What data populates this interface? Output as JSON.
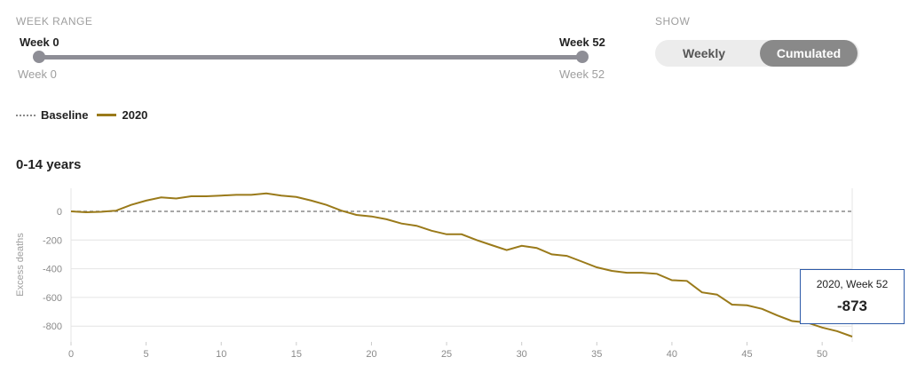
{
  "controls": {
    "week_range_label": "WEEK RANGE",
    "slider_start_top": "Week 0",
    "slider_end_top": "Week 52",
    "slider_start_bottom": "Week 0",
    "slider_end_bottom": "Week 52",
    "show_label": "SHOW",
    "toggle_weekly": "Weekly",
    "toggle_cumulated": "Cumulated",
    "toggle_selected": "Cumulated",
    "range": [
      0,
      52
    ]
  },
  "legend": {
    "baseline": "Baseline",
    "series": "2020"
  },
  "tooltip": {
    "title": "2020, Week 52",
    "value": "-873"
  },
  "colors": {
    "series": "#9a7a1a",
    "baseline": "#8a8a8a",
    "tooltip_border": "#2d5aa8"
  },
  "chart_data": {
    "type": "line",
    "title": "0-14 years",
    "xlabel": "",
    "ylabel": "Excess deaths",
    "xlim": [
      0,
      52
    ],
    "ylim": [
      -900,
      160
    ],
    "x_ticks": [
      0,
      5,
      10,
      15,
      20,
      25,
      30,
      35,
      40,
      45,
      50
    ],
    "y_ticks": [
      0,
      -200,
      -400,
      -600,
      -800
    ],
    "grid": "horizontal",
    "series": [
      {
        "name": "2020",
        "x": [
          0,
          1,
          2,
          3,
          4,
          5,
          6,
          7,
          8,
          9,
          10,
          11,
          12,
          13,
          14,
          15,
          16,
          17,
          18,
          19,
          20,
          21,
          22,
          23,
          24,
          25,
          26,
          27,
          28,
          29,
          30,
          31,
          32,
          33,
          34,
          35,
          36,
          37,
          38,
          39,
          40,
          41,
          42,
          43,
          44,
          45,
          46,
          47,
          48,
          49,
          50,
          51,
          52
        ],
        "y": [
          0,
          -6,
          -3,
          5,
          45,
          75,
          97,
          90,
          105,
          105,
          110,
          115,
          115,
          125,
          110,
          100,
          75,
          45,
          5,
          -25,
          -35,
          -55,
          -85,
          -100,
          -135,
          -160,
          -160,
          -200,
          -235,
          -270,
          -240,
          -255,
          -300,
          -310,
          -350,
          -390,
          -415,
          -428,
          -428,
          -435,
          -480,
          -485,
          -565,
          -580,
          -650,
          -655,
          -680,
          -725,
          -765,
          -775,
          -810,
          -835,
          -873
        ]
      },
      {
        "name": "Baseline",
        "x": [
          0,
          52
        ],
        "y": [
          0,
          0
        ]
      }
    ],
    "highlight": {
      "x": 52,
      "y": -873
    }
  }
}
